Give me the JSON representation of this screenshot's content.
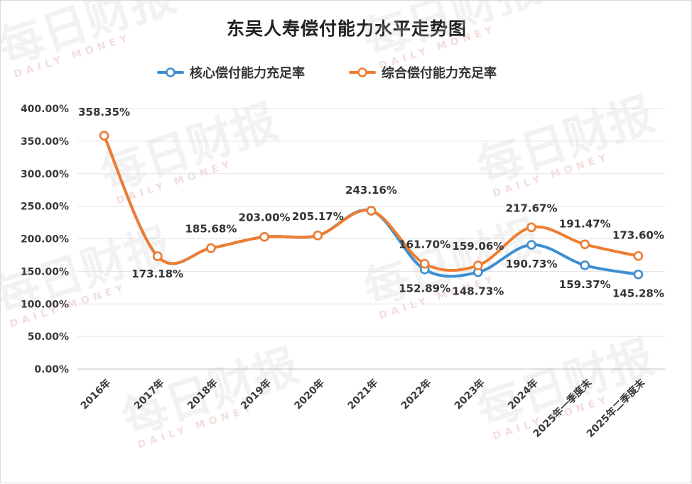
{
  "chart_data": {
    "type": "line",
    "title": "东吴人寿偿付能力水平走势图",
    "categories": [
      "2016年",
      "2017年",
      "2018年",
      "2019年",
      "2020年",
      "2021年",
      "2022年",
      "2023年",
      "2024年",
      "2025年一季度末",
      "2025年二季度末"
    ],
    "series": [
      {
        "name": "核心偿付能力充足率",
        "color": "#3d8fd1",
        "values": [
          358.35,
          173.18,
          185.68,
          203.0,
          205.17,
          243.16,
          152.89,
          148.73,
          190.73,
          159.37,
          145.28
        ],
        "labels": [
          "",
          "",
          "",
          "",
          "",
          "",
          "152.89%",
          "148.73%",
          "190.73%",
          "159.37%",
          "145.28%"
        ]
      },
      {
        "name": "综合偿付能力充足率",
        "color": "#ef7d31",
        "values": [
          358.35,
          173.18,
          185.68,
          203.0,
          205.17,
          243.16,
          161.7,
          159.06,
          217.67,
          191.47,
          173.6
        ],
        "labels": [
          "358.35%",
          "173.18%",
          "185.68%",
          "203.00%",
          "205.17%",
          "243.16%",
          "161.70%",
          "159.06%",
          "217.67%",
          "191.47%",
          "173.60%"
        ]
      }
    ],
    "ylim": [
      0,
      400
    ],
    "yticks": [
      "0.00%",
      "50.00%",
      "100.00%",
      "150.00%",
      "200.00%",
      "250.00%",
      "300.00%",
      "350.00%",
      "400.00%"
    ],
    "xlabel": "",
    "ylabel": "",
    "grid": true,
    "legend_position": "top"
  },
  "watermark": {
    "main": "每日财报",
    "sub": "DAILY MONEY"
  }
}
